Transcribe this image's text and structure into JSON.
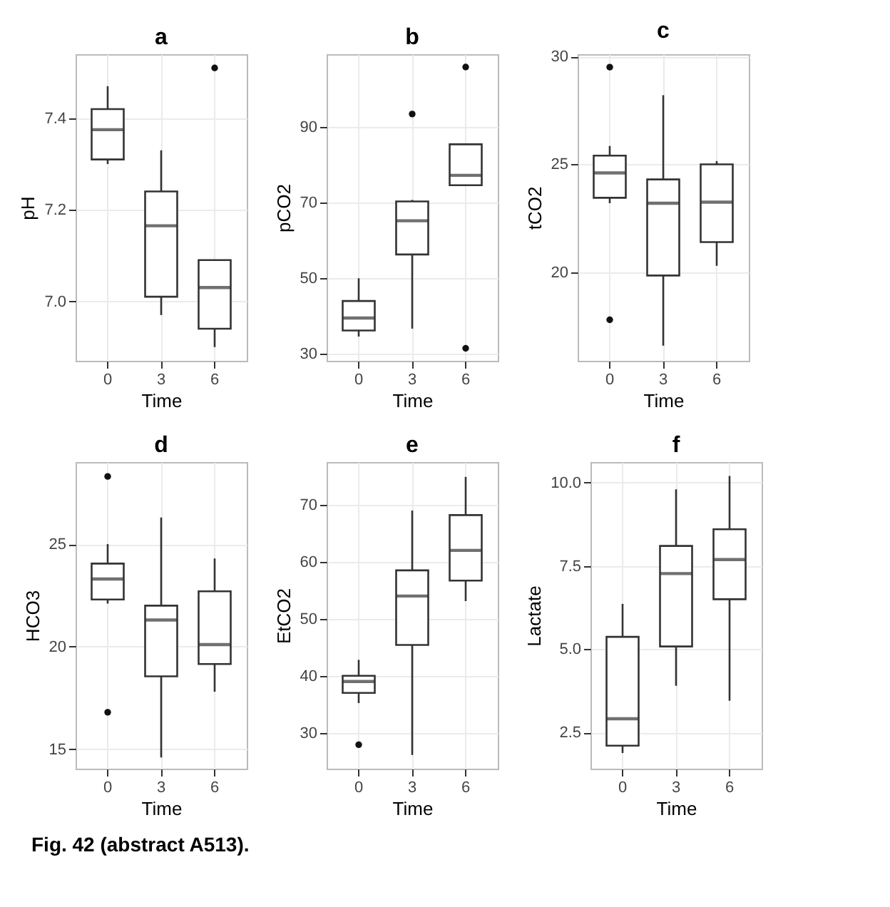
{
  "chart_data": [
    {
      "type": "box",
      "title": "a",
      "xlabel": "Time",
      "ylabel": "pH",
      "categories": [
        "0",
        "3",
        "6"
      ],
      "ylim": [
        6.87,
        7.54
      ],
      "yticks": [
        {
          "value": 7,
          "label": "7.0"
        },
        7.2,
        7.4
      ],
      "grid": true,
      "annotations": [
        "Fig. 42 (abstract A513)."
      ],
      "boxes": [
        {
          "low": 7.3,
          "q1": 7.31,
          "median": 7.375,
          "q3": 7.42,
          "high": 7.47
        },
        {
          "low": 6.97,
          "q1": 7.01,
          "median": 7.165,
          "q3": 7.24,
          "high": 7.33
        },
        {
          "low": 6.9,
          "q1": 6.94,
          "median": 7.03,
          "q3": 7.09,
          "high": 7.09,
          "outliers": [
            7.51
          ]
        }
      ]
    },
    {
      "type": "box",
      "title": "b",
      "xlabel": "Time",
      "ylabel": "pCO2",
      "categories": [
        "0",
        "3",
        "6"
      ],
      "ylim": [
        28.2,
        109.2
      ],
      "yticks": [
        30,
        50,
        70,
        90
      ],
      "grid": true,
      "boxes": [
        {
          "low": 34.6,
          "q1": 36.2,
          "median": 39.5,
          "q3": 44,
          "high": 50
        },
        {
          "low": 36.7,
          "q1": 56.3,
          "median": 65.2,
          "q3": 70.3,
          "high": 70.7,
          "outliers": [
            93.4
          ]
        },
        {
          "low": 74.6,
          "q1": 74.6,
          "median": 77.2,
          "q3": 85.4,
          "high": 85.4,
          "outliers": [
            105.8,
            31.5
          ]
        }
      ]
    },
    {
      "type": "box",
      "title": "c",
      "xlabel": "Time",
      "ylabel": "tCO2",
      "categories": [
        "0",
        "3",
        "6"
      ],
      "ylim": [
        15.9,
        30.1
      ],
      "yticks": [
        20,
        25,
        30
      ],
      "grid": true,
      "boxes": [
        {
          "low": 23.2,
          "q1": 23.45,
          "median": 24.6,
          "q3": 25.4,
          "high": 25.85,
          "outliers": [
            29.5,
            17.8
          ]
        },
        {
          "low": 16.6,
          "q1": 19.85,
          "median": 23.2,
          "q3": 24.3,
          "high": 28.2
        },
        {
          "low": 20.3,
          "q1": 21.4,
          "median": 23.25,
          "q3": 25.0,
          "high": 25.15
        }
      ]
    },
    {
      "type": "box",
      "title": "d",
      "xlabel": "Time",
      "ylabel": "HCO3",
      "categories": [
        "0",
        "3",
        "6"
      ],
      "ylim": [
        14.05,
        29.0
      ],
      "yticks": [
        15,
        20,
        25
      ],
      "grid": true,
      "boxes": [
        {
          "low": 22.1,
          "q1": 22.3,
          "median": 23.3,
          "q3": 24.05,
          "high": 25.0,
          "outliers": [
            28.3,
            16.8
          ]
        },
        {
          "low": 14.6,
          "q1": 18.55,
          "median": 21.3,
          "q3": 22.0,
          "high": 26.3
        },
        {
          "low": 17.8,
          "q1": 19.15,
          "median": 20.1,
          "q3": 22.7,
          "high": 24.3
        }
      ]
    },
    {
      "type": "box",
      "title": "e",
      "xlabel": "Time",
      "ylabel": "EtCO2",
      "categories": [
        "0",
        "3",
        "6"
      ],
      "ylim": [
        23.7,
        77.5
      ],
      "yticks": [
        30,
        40,
        50,
        60,
        70
      ],
      "grid": true,
      "boxes": [
        {
          "low": 35.2,
          "q1": 37.0,
          "median": 39.0,
          "q3": 40.0,
          "high": 42.8,
          "outliers": [
            27.9
          ]
        },
        {
          "low": 26.1,
          "q1": 45.4,
          "median": 54.0,
          "q3": 58.5,
          "high": 69
        },
        {
          "low": 53.1,
          "q1": 56.7,
          "median": 62.0,
          "q3": 68.2,
          "high": 74.9
        }
      ]
    },
    {
      "type": "box",
      "title": "f",
      "xlabel": "Time",
      "ylabel": "Lactate",
      "categories": [
        "0",
        "3",
        "6"
      ],
      "ylim": [
        1.41,
        10.62
      ],
      "yticks": [
        2.5,
        {
          "value": 5,
          "label": "5.0"
        },
        7.5,
        {
          "value": 10,
          "label": "10.0"
        }
      ],
      "grid": true,
      "boxes": [
        {
          "low": 1.88,
          "q1": 2.1,
          "median": 2.91,
          "q3": 5.37,
          "high": 6.36
        },
        {
          "low": 3.9,
          "q1": 5.08,
          "median": 7.27,
          "q3": 8.1,
          "high": 9.8
        },
        {
          "low": 3.45,
          "q1": 6.5,
          "median": 7.69,
          "q3": 8.6,
          "high": 10.2
        }
      ]
    }
  ]
}
